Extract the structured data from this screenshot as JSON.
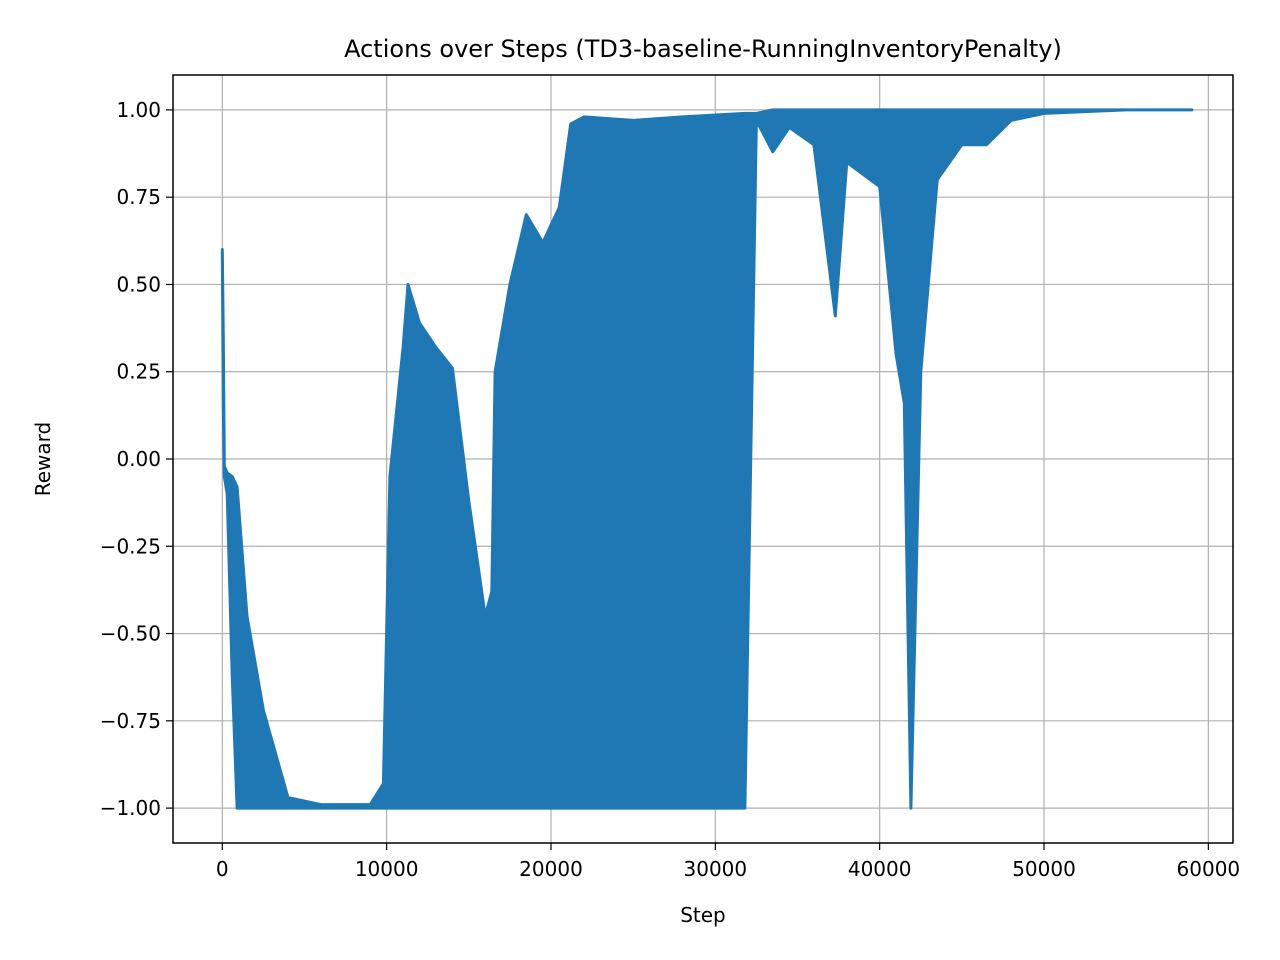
{
  "chart_data": {
    "type": "area",
    "title": "Actions over Steps (TD3-baseline-RunningInventoryPenalty)",
    "xlabel": "Step",
    "ylabel": "Reward",
    "xlim": [
      -3000,
      61500
    ],
    "ylim": [
      -1.1,
      1.1
    ],
    "grid": true,
    "xticks": [
      0,
      10000,
      20000,
      30000,
      40000,
      50000,
      60000
    ],
    "xtick_labels": [
      "0",
      "10000",
      "20000",
      "30000",
      "40000",
      "50000",
      "60000"
    ],
    "yticks": [
      1.0,
      0.75,
      0.5,
      0.25,
      0.0,
      -0.25,
      -0.5,
      -0.75,
      -1.0
    ],
    "ytick_labels": [
      "1.00",
      "0.75",
      "0.50",
      "0.25",
      "0.00",
      "−0.25",
      "−0.50",
      "−0.75",
      "−1.00"
    ],
    "series_color": "#1f77b4",
    "envelope": {
      "x": [
        0,
        60,
        120,
        300,
        600,
        900,
        1500,
        2500,
        4000,
        6000,
        9000,
        9800,
        10200,
        11000,
        11300,
        12000,
        13000,
        14000,
        15000,
        16000,
        16400,
        16600,
        17500,
        18500,
        19500,
        20500,
        21200,
        22000,
        25000,
        28000,
        31800,
        32500,
        33500,
        34500,
        36000,
        37300,
        38000,
        40000,
        41000,
        41500,
        41900,
        42500,
        43500,
        45000,
        46500,
        48000,
        50000,
        55000,
        59000
      ],
      "upper": [
        0.6,
        0.35,
        -0.02,
        -0.04,
        -0.05,
        -0.08,
        -0.45,
        -0.72,
        -0.97,
        -0.99,
        -0.99,
        -0.93,
        -0.05,
        0.32,
        0.5,
        0.39,
        0.32,
        0.26,
        -0.12,
        -0.45,
        -0.38,
        0.25,
        0.5,
        0.7,
        0.62,
        0.72,
        0.96,
        0.98,
        0.97,
        0.98,
        0.99,
        0.99,
        1.0,
        1.0,
        1.0,
        1.0,
        1.0,
        1.0,
        1.0,
        1.0,
        1.0,
        1.0,
        1.0,
        1.0,
        1.0,
        1.0,
        1.0,
        1.0,
        1.0
      ],
      "lower": [
        0.6,
        0.15,
        -0.05,
        -0.1,
        -0.62,
        -1.0,
        -1.0,
        -1.0,
        -1.0,
        -1.0,
        -1.0,
        -1.0,
        -1.0,
        -1.0,
        -1.0,
        -1.0,
        -1.0,
        -1.0,
        -1.0,
        -1.0,
        -1.0,
        -1.0,
        -1.0,
        -1.0,
        -1.0,
        -1.0,
        -1.0,
        -1.0,
        -1.0,
        -1.0,
        -1.0,
        0.97,
        0.88,
        0.95,
        0.9,
        0.41,
        0.85,
        0.78,
        0.3,
        0.16,
        -1.0,
        0.25,
        0.8,
        0.9,
        0.9,
        0.97,
        0.99,
        1.0,
        1.0
      ]
    }
  }
}
